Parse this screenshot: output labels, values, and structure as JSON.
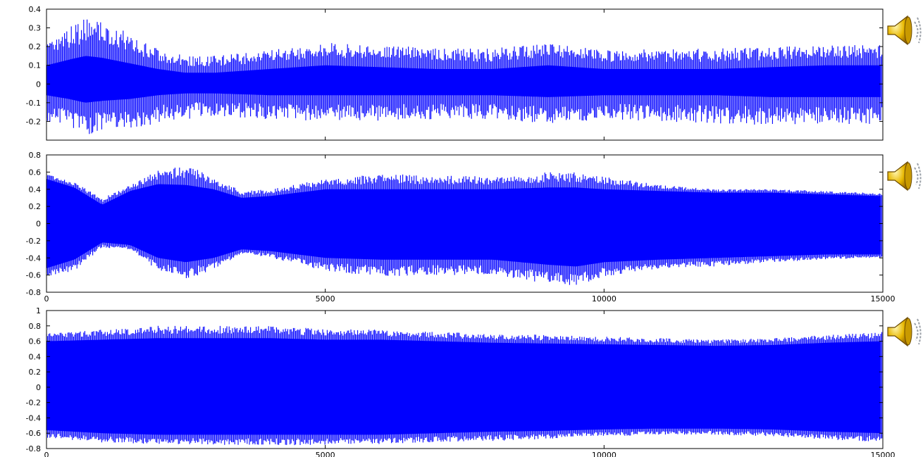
{
  "colors": {
    "wave": "#0000ff",
    "axis": "#000000",
    "background": "#ffffff"
  },
  "icons": {
    "speaker": "speaker-icon"
  },
  "chart_data": [
    {
      "type": "line",
      "title": "",
      "xlabel": "",
      "ylabel": "",
      "xlim": [
        0,
        15000
      ],
      "ylim": [
        -0.3,
        0.4
      ],
      "x_ticks": [],
      "y_ticks": [
        "-0.2",
        "-0.1",
        "0",
        "0.1",
        "0.2",
        "0.3",
        "0.4"
      ],
      "y_tick_values": [
        -0.2,
        -0.1,
        0,
        0.1,
        0.2,
        0.3,
        0.4
      ],
      "grid": false,
      "series": [
        {
          "envelope_x": [
            0,
            400,
            700,
            1000,
            1500,
            2000,
            2500,
            3000,
            4000,
            5000,
            6000,
            7000,
            8000,
            9000,
            10000,
            11000,
            12000,
            13000,
            14000,
            15000
          ],
          "upper": [
            0.22,
            0.3,
            0.36,
            0.34,
            0.27,
            0.19,
            0.15,
            0.15,
            0.18,
            0.22,
            0.21,
            0.19,
            0.19,
            0.22,
            0.18,
            0.19,
            0.19,
            0.2,
            0.21,
            0.21
          ],
          "lower": [
            -0.2,
            -0.24,
            -0.27,
            -0.26,
            -0.24,
            -0.21,
            -0.19,
            -0.17,
            -0.19,
            -0.2,
            -0.2,
            -0.19,
            -0.19,
            -0.21,
            -0.19,
            -0.2,
            -0.21,
            -0.22,
            -0.22,
            -0.22
          ],
          "fill_upper": [
            0.1,
            0.13,
            0.15,
            0.14,
            0.11,
            0.08,
            0.06,
            0.06,
            0.08,
            0.1,
            0.09,
            0.08,
            0.08,
            0.1,
            0.08,
            0.08,
            0.08,
            0.09,
            0.1,
            0.1
          ],
          "fill_lower": [
            -0.06,
            -0.08,
            -0.1,
            -0.09,
            -0.08,
            -0.06,
            -0.05,
            -0.05,
            -0.06,
            -0.06,
            -0.06,
            -0.06,
            -0.06,
            -0.07,
            -0.06,
            -0.06,
            -0.06,
            -0.07,
            -0.07,
            -0.07
          ]
        }
      ]
    },
    {
      "type": "line",
      "title": "",
      "xlabel": "",
      "ylabel": "",
      "xlim": [
        0,
        15000
      ],
      "ylim": [
        -0.8,
        0.8
      ],
      "x_ticks": [
        "0",
        "5000",
        "10000",
        "15000"
      ],
      "x_tick_values": [
        0,
        5000,
        10000,
        15000
      ],
      "y_ticks": [
        "-0.8",
        "-0.6",
        "-0.4",
        "-0.2",
        "0",
        "0.2",
        "0.4",
        "0.6",
        "0.8"
      ],
      "y_tick_values": [
        -0.8,
        -0.6,
        -0.4,
        -0.2,
        0,
        0.2,
        0.4,
        0.6,
        0.8
      ],
      "grid": false,
      "series": [
        {
          "envelope_x": [
            0,
            500,
            1000,
            1500,
            2000,
            2500,
            3000,
            3500,
            4000,
            5000,
            6000,
            7000,
            8000,
            9000,
            9500,
            10000,
            11000,
            12000,
            13000,
            14000,
            15000
          ],
          "upper": [
            0.58,
            0.48,
            0.3,
            0.45,
            0.62,
            0.68,
            0.55,
            0.38,
            0.4,
            0.52,
            0.58,
            0.56,
            0.55,
            0.6,
            0.6,
            0.55,
            0.45,
            0.4,
            0.4,
            0.38,
            0.35
          ],
          "lower": [
            -0.62,
            -0.55,
            -0.28,
            -0.3,
            -0.55,
            -0.65,
            -0.55,
            -0.35,
            -0.4,
            -0.55,
            -0.62,
            -0.6,
            -0.6,
            -0.7,
            -0.72,
            -0.62,
            -0.52,
            -0.5,
            -0.45,
            -0.42,
            -0.4
          ],
          "fill_upper": [
            0.52,
            0.42,
            0.22,
            0.38,
            0.46,
            0.45,
            0.4,
            0.3,
            0.32,
            0.4,
            0.4,
            0.4,
            0.4,
            0.42,
            0.42,
            0.4,
            0.38,
            0.36,
            0.36,
            0.34,
            0.32
          ],
          "fill_lower": [
            -0.52,
            -0.42,
            -0.22,
            -0.25,
            -0.4,
            -0.45,
            -0.4,
            -0.3,
            -0.32,
            -0.4,
            -0.42,
            -0.42,
            -0.42,
            -0.48,
            -0.5,
            -0.45,
            -0.42,
            -0.4,
            -0.38,
            -0.36,
            -0.36
          ]
        }
      ]
    },
    {
      "type": "line",
      "title": "",
      "xlabel": "",
      "ylabel": "",
      "xlim": [
        0,
        15000
      ],
      "ylim": [
        -0.8,
        1
      ],
      "x_ticks": [
        "0",
        "5000",
        "10000",
        "15000"
      ],
      "x_tick_values": [
        0,
        5000,
        10000,
        15000
      ],
      "y_ticks": [
        "-0.8",
        "-0.6",
        "-0.4",
        "-0.2",
        "0",
        "0.2",
        "0.4",
        "0.6",
        "0.8",
        "1"
      ],
      "y_tick_values": [
        -0.8,
        -0.6,
        -0.4,
        -0.2,
        0,
        0.2,
        0.4,
        0.6,
        0.8,
        1
      ],
      "grid": false,
      "series": [
        {
          "envelope_x": [
            0,
            1000,
            2000,
            3000,
            4000,
            5000,
            6000,
            7000,
            8000,
            9000,
            10000,
            11000,
            12000,
            13000,
            14000,
            15000
          ],
          "upper": [
            0.7,
            0.75,
            0.8,
            0.8,
            0.8,
            0.76,
            0.75,
            0.72,
            0.7,
            0.68,
            0.66,
            0.64,
            0.62,
            0.64,
            0.68,
            0.72
          ],
          "lower": [
            -0.66,
            -0.72,
            -0.74,
            -0.75,
            -0.76,
            -0.75,
            -0.74,
            -0.72,
            -0.7,
            -0.68,
            -0.64,
            -0.62,
            -0.62,
            -0.64,
            -0.68,
            -0.72
          ],
          "fill_upper": [
            0.6,
            0.62,
            0.64,
            0.64,
            0.64,
            0.62,
            0.62,
            0.6,
            0.58,
            0.57,
            0.56,
            0.55,
            0.54,
            0.55,
            0.58,
            0.6
          ],
          "fill_lower": [
            -0.56,
            -0.6,
            -0.62,
            -0.62,
            -0.62,
            -0.62,
            -0.62,
            -0.6,
            -0.58,
            -0.57,
            -0.55,
            -0.54,
            -0.54,
            -0.55,
            -0.58,
            -0.6
          ]
        }
      ]
    }
  ]
}
